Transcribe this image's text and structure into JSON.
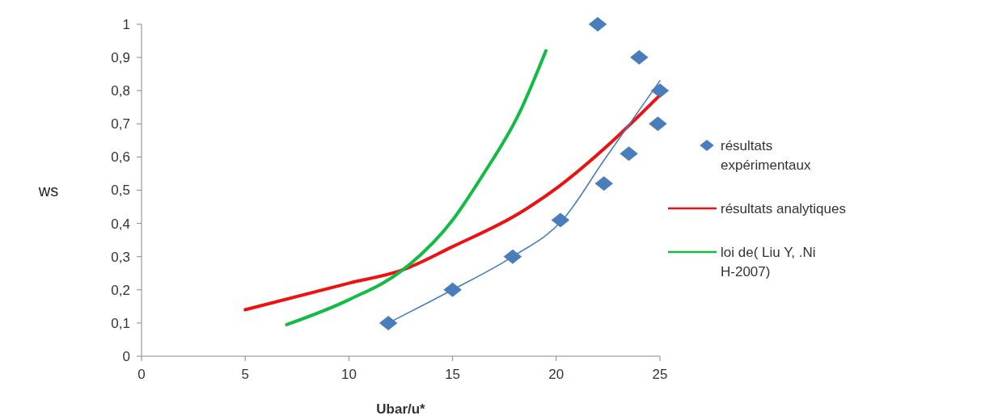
{
  "chart_data": {
    "type": "scatter",
    "xlabel": "Ubar/u*",
    "ylabel": "ws",
    "xlim": [
      0,
      25
    ],
    "ylim": [
      0,
      1
    ],
    "xticks": [
      0,
      5,
      10,
      15,
      20,
      25
    ],
    "yticks": [
      0,
      {
        "value": 0.1,
        "label": "0,1"
      },
      {
        "value": 0.2,
        "label": "0,2"
      },
      {
        "value": 0.3,
        "label": "0,3"
      },
      {
        "value": 0.4,
        "label": "0,4"
      },
      {
        "value": 0.5,
        "label": "0,5"
      },
      {
        "value": 0.6,
        "label": "0,6"
      },
      {
        "value": 0.7,
        "label": "0,7"
      },
      {
        "value": 0.8,
        "label": "0,8"
      },
      {
        "value": 0.9,
        "label": "0,9"
      },
      1
    ],
    "legend": "right",
    "grid": false,
    "series": [
      {
        "name": "résultats expérimentaux",
        "marker": "diamond",
        "color": "#4a7ebb",
        "x": [
          11.9,
          15.0,
          17.9,
          20.2,
          22.3,
          23.5,
          24.9,
          25.0,
          22.0,
          24.0
        ],
        "values": [
          0.1,
          0.2,
          0.3,
          0.41,
          0.52,
          0.61,
          0.7,
          0.8,
          1.0,
          0.9
        ]
      },
      {
        "name": "résultats analytiques",
        "type": "line",
        "marker": "none",
        "color": "#ee1111",
        "x": [
          5,
          10,
          12.6,
          15,
          18.2,
          20.1,
          22.4,
          24.9
        ],
        "values": [
          0.14,
          0.22,
          0.26,
          0.33,
          0.43,
          0.51,
          0.63,
          0.78
        ]
      },
      {
        "name": "loi de( Liu Y, .Ni H-2007)",
        "type": "line",
        "marker": "none",
        "color": "#11bb44",
        "x": [
          7,
          10,
          12.6,
          15,
          16.4,
          18.2,
          19.5
        ],
        "values": [
          0.095,
          0.17,
          0.26,
          0.41,
          0.54,
          0.73,
          0.92
        ]
      },
      {
        "type": "line",
        "marker": "none",
        "color": "#4a7ebb",
        "x": [
          11.9,
          15,
          17.9,
          20.3,
          22.3,
          25.0
        ],
        "values": [
          0.1,
          0.2,
          0.3,
          0.41,
          0.59,
          0.83
        ]
      }
    ]
  }
}
